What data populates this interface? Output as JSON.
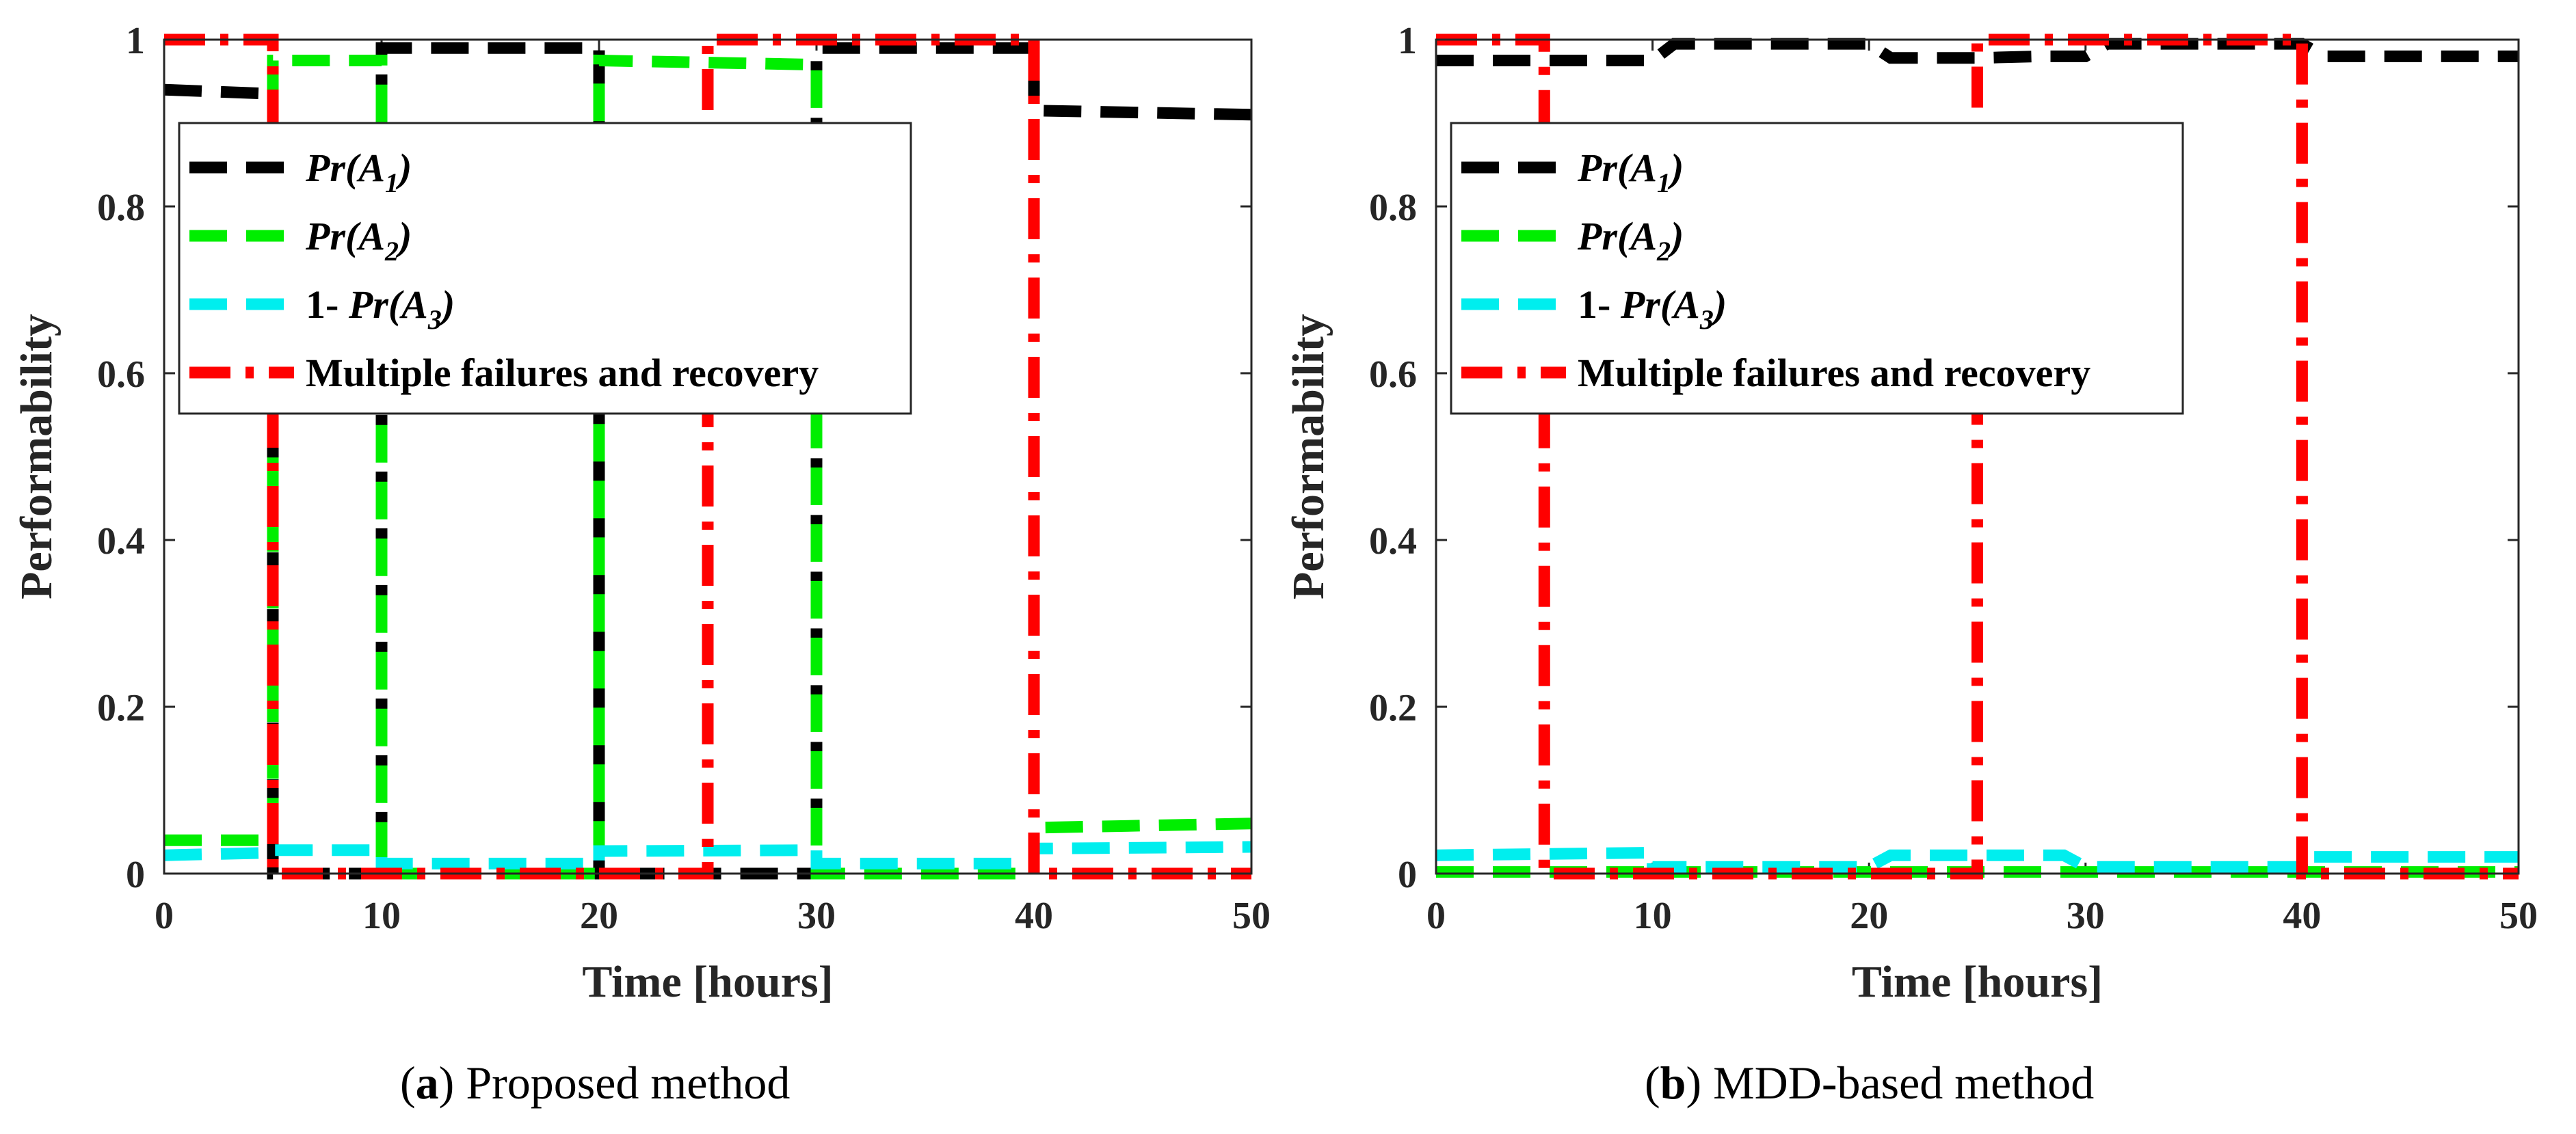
{
  "chart_data": [
    {
      "type": "line",
      "panel_letter": "a",
      "caption": "Proposed method",
      "xlabel": "Time [hours]",
      "ylabel": "Performability",
      "xlim": [
        0,
        50
      ],
      "ylim": [
        0,
        1
      ],
      "xticks": [
        "0",
        "10",
        "20",
        "30",
        "40",
        "50"
      ],
      "yticks": [
        "0",
        "0.2",
        "0.4",
        "0.6",
        "0.8",
        "1"
      ],
      "legend_position": "upper-left",
      "series": [
        {
          "name_pre": "",
          "name_main": "Pr(A",
          "name_sub": "1",
          "name_post": ")",
          "color": "#000000",
          "x": [
            0,
            5,
            5,
            10,
            10,
            20,
            20,
            30,
            30,
            40,
            40,
            50
          ],
          "y": [
            0.94,
            0.935,
            0,
            0,
            0.99,
            0.99,
            0,
            0,
            0.99,
            0.99,
            0.915,
            0.91
          ]
        },
        {
          "name_pre": "",
          "name_main": "Pr(A",
          "name_sub": "2",
          "name_post": ")",
          "color": "#00ee00",
          "x": [
            0,
            5,
            5,
            10,
            10,
            20,
            20,
            30,
            30,
            40,
            40,
            50
          ],
          "y": [
            0.04,
            0.04,
            0.975,
            0.975,
            0,
            0,
            0.975,
            0.97,
            0,
            0,
            0.055,
            0.06
          ]
        },
        {
          "name_pre": "1- ",
          "name_main": "Pr(A",
          "name_sub": "3",
          "name_post": ")",
          "color": "#00eeee",
          "x": [
            0,
            5,
            5,
            10,
            10,
            20,
            20,
            30,
            30,
            40,
            40,
            50
          ],
          "y": [
            0.022,
            0.025,
            0.028,
            0.028,
            0.012,
            0.012,
            0.027,
            0.028,
            0.012,
            0.012,
            0.03,
            0.032
          ]
        },
        {
          "name_pre": "",
          "name_main": "Multiple failures and recovery",
          "name_sub": "",
          "name_post": "",
          "color": "#ff0000",
          "x": [
            0,
            5,
            5,
            25,
            25,
            40,
            40,
            50
          ],
          "y": [
            1,
            1,
            0,
            0,
            1,
            1,
            0,
            0
          ]
        }
      ]
    },
    {
      "type": "line",
      "panel_letter": "b",
      "caption": "MDD-based method",
      "xlabel": "Time [hours]",
      "ylabel": "Performability",
      "xlim": [
        0,
        50
      ],
      "ylim": [
        0,
        1
      ],
      "xticks": [
        "0",
        "10",
        "20",
        "30",
        "40",
        "50"
      ],
      "yticks": [
        "0",
        "0.2",
        "0.4",
        "0.6",
        "0.8",
        "1"
      ],
      "legend_position": "upper-left",
      "series": [
        {
          "name_pre": "",
          "name_main": "Pr(A",
          "name_sub": "1",
          "name_post": ")",
          "color": "#000000",
          "x": [
            0,
            10,
            11,
            20,
            21,
            25,
            28,
            30,
            31,
            40,
            41,
            50
          ],
          "y": [
            0.975,
            0.975,
            0.995,
            0.995,
            0.978,
            0.978,
            0.98,
            0.98,
            0.995,
            0.995,
            0.98,
            0.98
          ]
        },
        {
          "name_pre": "",
          "name_main": "Pr(A",
          "name_sub": "2",
          "name_post": ")",
          "color": "#00ee00",
          "x": [
            0,
            50
          ],
          "y": [
            0.002,
            0.002
          ]
        },
        {
          "name_pre": "1- ",
          "name_main": "Pr(A",
          "name_sub": "3",
          "name_post": ")",
          "color": "#00eeee",
          "x": [
            0,
            10,
            10,
            20,
            21,
            29,
            30,
            40,
            40,
            50
          ],
          "y": [
            0.022,
            0.025,
            0.008,
            0.008,
            0.022,
            0.022,
            0.008,
            0.008,
            0.02,
            0.02
          ]
        },
        {
          "name_pre": "",
          "name_main": "Multiple failures and recovery",
          "name_sub": "",
          "name_post": "",
          "color": "#ff0000",
          "x": [
            0,
            5,
            5,
            25,
            25,
            40,
            40,
            50
          ],
          "y": [
            1,
            1,
            0,
            0,
            1,
            1,
            0,
            0
          ]
        }
      ]
    }
  ]
}
